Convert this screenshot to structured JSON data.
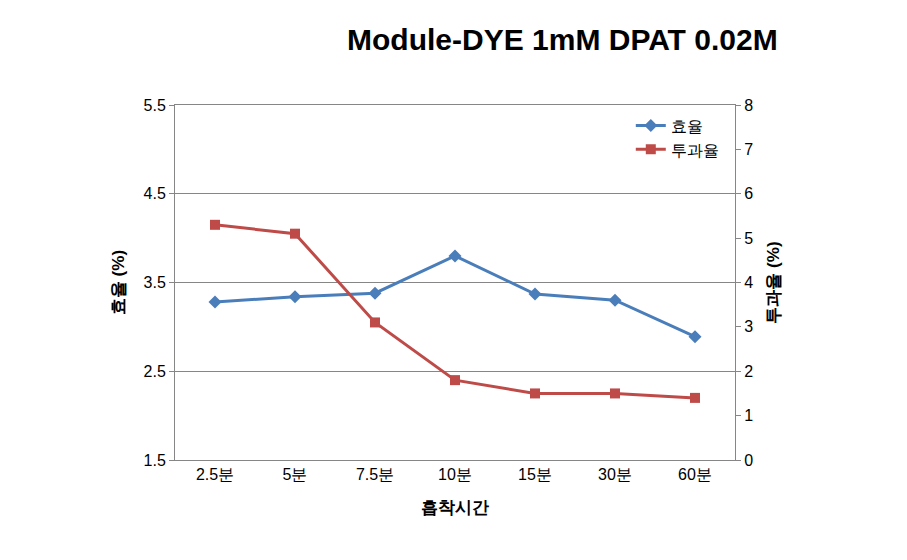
{
  "chart_data": {
    "type": "line",
    "title": "Module-DYE 1mM DPAT 0.02M",
    "x_label": "흡착시간",
    "y_label": "효율 (%)",
    "y2_label": "투과율 (%)",
    "categories": [
      "2.5분",
      "5분",
      "7.5분",
      "10분",
      "15분",
      "30분",
      "60분"
    ],
    "series": [
      {
        "name": "효율",
        "color": "#4a7ebb",
        "marker": "diamond",
        "values": [
          3.28,
          3.34,
          3.38,
          3.8,
          3.37,
          3.3,
          2.89
        ]
      },
      {
        "name": "투과율",
        "color": "#be4b48",
        "marker": "square",
        "axis": "y2",
        "values": [
          5.3,
          5.1,
          3.1,
          1.8,
          1.5,
          1.5,
          1.4
        ]
      }
    ],
    "ylim": [
      1.5,
      5.5
    ],
    "yticks": [
      1.5,
      2.5,
      3.5,
      4.5,
      5.5
    ],
    "y2lim": [
      0,
      8
    ],
    "y2ticks": [
      0,
      1,
      2,
      3,
      4,
      5,
      6,
      7,
      8
    ],
    "grid": true,
    "legend": "top right"
  }
}
